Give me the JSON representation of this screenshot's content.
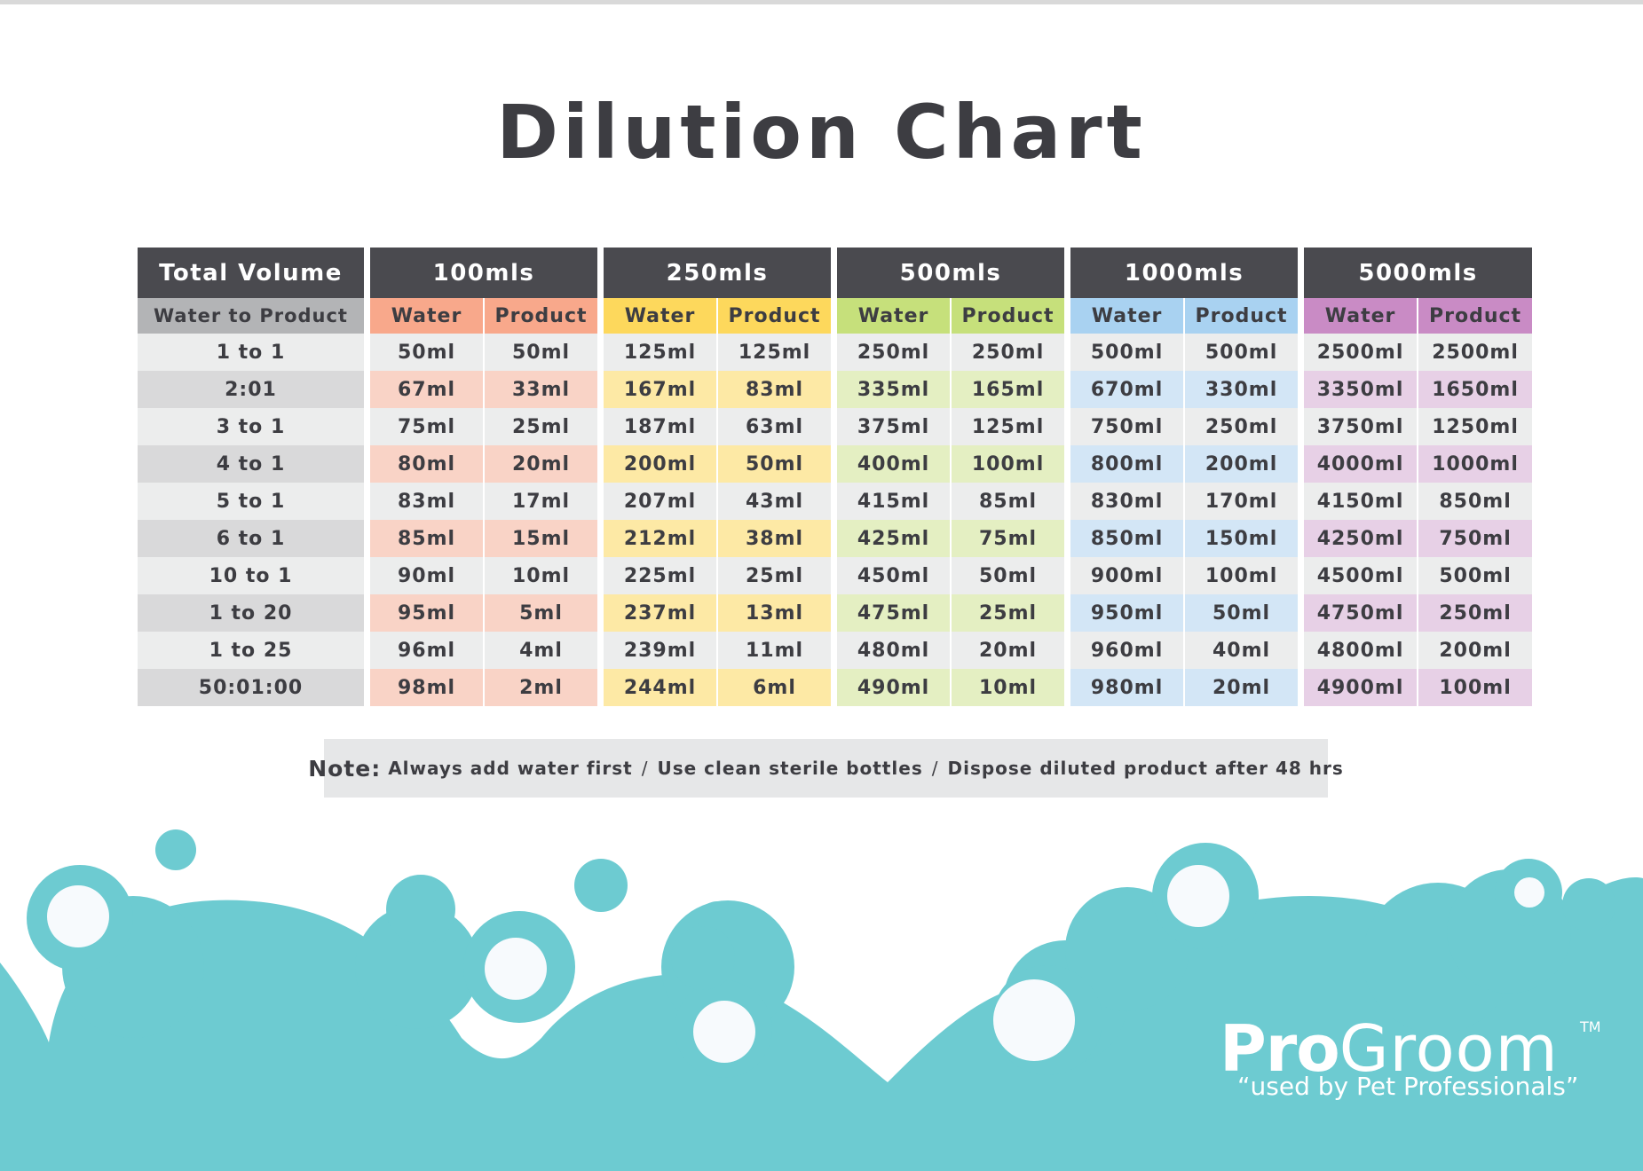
{
  "title": "Dilution Chart",
  "colors": {
    "header_dark": "#4a4a4f",
    "teal": "#6dcbd1",
    "c100": "#f8a88b",
    "c250": "#fdd85c",
    "c500": "#c6e07b",
    "c1000": "#a9d2f1",
    "c5000": "#c98bc5"
  },
  "table": {
    "total_volume_label": "Total Volume",
    "water_to_product_label": "Water to Product",
    "volumes": [
      {
        "label": "100mls",
        "water": "Water",
        "product": "Product"
      },
      {
        "label": "250mls",
        "water": "Water",
        "product": "Product"
      },
      {
        "label": "500mls",
        "water": "Water",
        "product": "Product"
      },
      {
        "label": "1000mls",
        "water": "Water",
        "product": "Product"
      },
      {
        "label": "5000mls",
        "water": "Water",
        "product": "Product"
      }
    ],
    "rows": [
      {
        "ratio": "1 to 1",
        "cells": [
          "50ml",
          "50ml",
          "125ml",
          "125ml",
          "250ml",
          "250ml",
          "500ml",
          "500ml",
          "2500ml",
          "2500ml"
        ]
      },
      {
        "ratio": "2:01",
        "cells": [
          "67ml",
          "33ml",
          "167ml",
          "83ml",
          "335ml",
          "165ml",
          "670ml",
          "330ml",
          "3350ml",
          "1650ml"
        ]
      },
      {
        "ratio": "3 to 1",
        "cells": [
          "75ml",
          "25ml",
          "187ml",
          "63ml",
          "375ml",
          "125ml",
          "750ml",
          "250ml",
          "3750ml",
          "1250ml"
        ]
      },
      {
        "ratio": "4 to 1",
        "cells": [
          "80ml",
          "20ml",
          "200ml",
          "50ml",
          "400ml",
          "100ml",
          "800ml",
          "200ml",
          "4000ml",
          "1000ml"
        ]
      },
      {
        "ratio": "5 to 1",
        "cells": [
          "83ml",
          "17ml",
          "207ml",
          "43ml",
          "415ml",
          "85ml",
          "830ml",
          "170ml",
          "4150ml",
          "850ml"
        ]
      },
      {
        "ratio": "6 to 1",
        "cells": [
          "85ml",
          "15ml",
          "212ml",
          "38ml",
          "425ml",
          "75ml",
          "850ml",
          "150ml",
          "4250ml",
          "750ml"
        ]
      },
      {
        "ratio": "10 to 1",
        "cells": [
          "90ml",
          "10ml",
          "225ml",
          "25ml",
          "450ml",
          "50ml",
          "900ml",
          "100ml",
          "4500ml",
          "500ml"
        ]
      },
      {
        "ratio": "1 to 20",
        "cells": [
          "95ml",
          "5ml",
          "237ml",
          "13ml",
          "475ml",
          "25ml",
          "950ml",
          "50ml",
          "4750ml",
          "250ml"
        ]
      },
      {
        "ratio": "1 to 25",
        "cells": [
          "96ml",
          "4ml",
          "239ml",
          "11ml",
          "480ml",
          "20ml",
          "960ml",
          "40ml",
          "4800ml",
          "200ml"
        ]
      },
      {
        "ratio": "50:01:00",
        "cells": [
          "98ml",
          "2ml",
          "244ml",
          "6ml",
          "490ml",
          "10ml",
          "980ml",
          "20ml",
          "4900ml",
          "100ml"
        ]
      }
    ]
  },
  "note": {
    "label": "Note:",
    "items": [
      "Always add water first",
      "Use clean sterile bottles",
      "Dispose diluted product after 48 hrs"
    ],
    "separator": "/"
  },
  "brand": {
    "pro": "Pro",
    "groom": "Groom",
    "tm": "TM",
    "tagline": "“used by Pet Professionals”"
  }
}
